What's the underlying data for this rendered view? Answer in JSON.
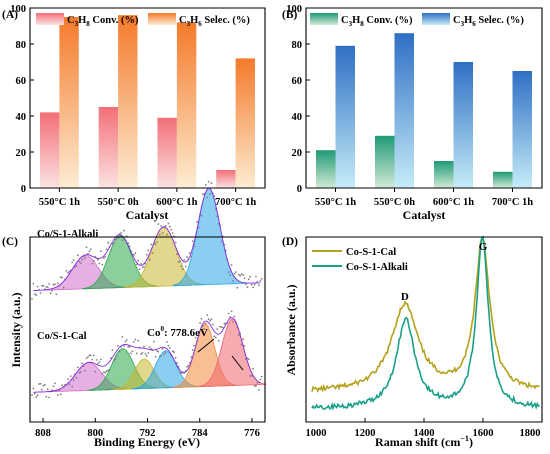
{
  "figure": {
    "colors": {
      "conv": "#f36f78",
      "selec_orange": "#f47a2a",
      "conv_green": "#1f9a76",
      "selec_blue": "#2f6fc4",
      "cal_line": "#b3a21b",
      "alkali_line": "#19a08a",
      "xps_points": "#808080"
    },
    "panels": [
      {
        "label": "(A)"
      },
      {
        "label": "(B)"
      },
      {
        "label": "(C)"
      },
      {
        "label": "(D)"
      }
    ]
  },
  "chart_data": [
    {
      "type": "bar",
      "panel": "(A)",
      "categories": [
        "550°C 1h",
        "550°C 0h",
        "600°C 1h",
        "700°C 1h"
      ],
      "series": [
        {
          "name": "C3H8 Conv. (%)",
          "name_main": "C",
          "name_sub1": "3",
          "name_mid": "H",
          "name_sub2": "8",
          "name_tail": " Conv. (%)",
          "values": [
            42,
            45,
            39,
            10
          ]
        },
        {
          "name": "C3H6 Selec. (%)",
          "name_main": "C",
          "name_sub1": "3",
          "name_mid": "H",
          "name_sub2": "6",
          "name_tail": " Selec. (%)",
          "values": [
            95,
            96,
            92,
            72
          ]
        }
      ],
      "xlabel": "Catalyst",
      "ylim": [
        0,
        100
      ],
      "yticks": [
        0,
        20,
        40,
        60,
        80,
        100
      ],
      "legend": "top"
    },
    {
      "type": "bar",
      "panel": "(B)",
      "categories": [
        "550°C 1h",
        "550°C 0h",
        "600°C 1h",
        "700°C 1h"
      ],
      "series": [
        {
          "name": "C3H8 Conv. (%)",
          "name_main": "C",
          "name_sub1": "3",
          "name_mid": "H",
          "name_sub2": "8",
          "name_tail": " Conv. (%)",
          "values": [
            21,
            29,
            15,
            9
          ]
        },
        {
          "name": "C3H6 Selec. (%)",
          "name_main": "C",
          "name_sub1": "3",
          "name_mid": "H",
          "name_sub2": "6",
          "name_tail": " Selec. (%)",
          "values": [
            79,
            86,
            70,
            65
          ]
        }
      ],
      "xlabel": "Catalyst",
      "ylim": [
        0,
        100
      ],
      "yticks": [
        0,
        20,
        40,
        60,
        80,
        100
      ],
      "legend": "top"
    },
    {
      "type": "scatter",
      "panel": "(C)",
      "xlabel": "Binding Energy (eV)",
      "ylabel": "Intensity (a.u.)",
      "xlim": [
        810,
        774
      ],
      "xticks": [
        808,
        800,
        792,
        784,
        776
      ],
      "series": [
        {
          "name": "Co/S-1-Alkali",
          "offset": 0.55,
          "peaks": [
            {
              "center": 801.5,
              "height": 0.18,
              "width": 2.0
            },
            {
              "center": 796.2,
              "height": 0.28,
              "width": 1.8
            },
            {
              "center": 789.5,
              "height": 0.32,
              "width": 1.9
            },
            {
              "center": 782.6,
              "height": 0.52,
              "width": 1.7
            }
          ]
        },
        {
          "name": "Co/S-1-Cal",
          "offset": 0.0,
          "peaks": [
            {
              "center": 801.0,
              "height": 0.15,
              "width": 2.0
            },
            {
              "center": 795.8,
              "height": 0.22,
              "width": 1.7
            },
            {
              "center": 792.5,
              "height": 0.16,
              "width": 1.5
            },
            {
              "center": 789.2,
              "height": 0.2,
              "width": 1.6
            },
            {
              "center": 783.2,
              "height": 0.34,
              "width": 1.5
            },
            {
              "center": 779.0,
              "height": 0.36,
              "width": 1.6
            }
          ]
        }
      ],
      "annotation": "Co0: 778.6eV",
      "annotation_main": "Co",
      "annotation_sup": "0",
      "annotation_tail": ":  778.6eV",
      "peak_colors": [
        "#d46fd0",
        "#2aa84a",
        "#c8b730",
        "#29a6e8",
        "#f08a3a",
        "#f0646e"
      ]
    },
    {
      "type": "line",
      "panel": "(D)",
      "xlabel": "Raman shift (cm−1)",
      "xlabel_main": "Raman shift (cm",
      "xlabel_sup": "−1",
      "xlabel_tail": ")",
      "ylabel": "Absorbance  (a.u.)",
      "xlim": [
        1000,
        1800
      ],
      "xticks": [
        1000,
        1200,
        1400,
        1600,
        1800
      ],
      "series": [
        {
          "name": "Co-S-1-Cal",
          "baseline": 0.16,
          "peaks": [
            {
              "center": 1335,
              "height": 0.47,
              "width": 55
            },
            {
              "center": 1598,
              "height": 0.82,
              "width": 30
            }
          ]
        },
        {
          "name": "Co-S-1-Alkali",
          "baseline": 0.07,
          "peaks": [
            {
              "center": 1338,
              "height": 0.48,
              "width": 38
            },
            {
              "center": 1598,
              "height": 0.93,
              "width": 24
            }
          ]
        }
      ],
      "annotations": [
        {
          "text": "D",
          "x": 1335
        },
        {
          "text": "G",
          "x": 1600
        }
      ],
      "legend": "top-left"
    }
  ]
}
